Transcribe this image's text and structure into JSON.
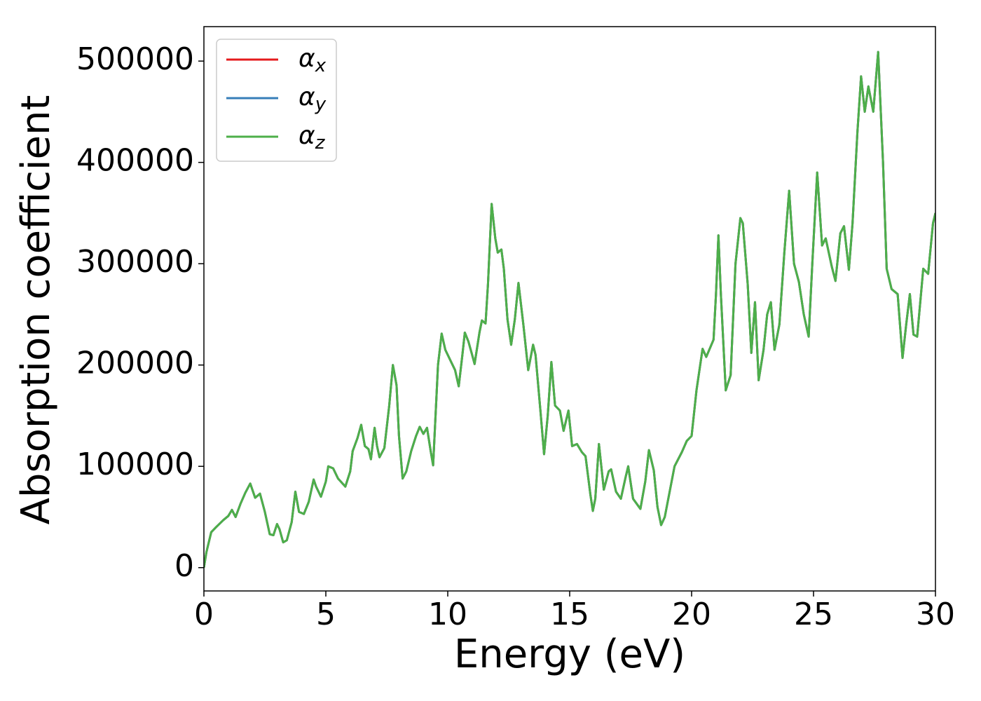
{
  "chart_data": {
    "type": "line",
    "xlabel": "Energy (eV)",
    "ylabel": "Absorption coefficient",
    "xlim": [
      0,
      30
    ],
    "xticks": [
      0,
      5,
      10,
      15,
      20,
      25,
      30
    ],
    "ylim": [
      -23000,
      534000
    ],
    "yticks": [
      0,
      100000,
      200000,
      300000,
      400000,
      500000
    ],
    "legend": "upper left",
    "grid": false,
    "x": [
      0,
      0.1,
      0.3,
      0.5,
      0.8,
      1.0,
      1.15,
      1.3,
      1.5,
      1.7,
      1.9,
      2.1,
      2.3,
      2.5,
      2.7,
      2.85,
      3.0,
      3.1,
      3.25,
      3.4,
      3.6,
      3.75,
      3.9,
      4.1,
      4.3,
      4.5,
      4.6,
      4.8,
      5.0,
      5.1,
      5.3,
      5.5,
      5.8,
      6.0,
      6.1,
      6.3,
      6.45,
      6.6,
      6.75,
      6.85,
      7.0,
      7.1,
      7.2,
      7.4,
      7.6,
      7.75,
      7.9,
      8.0,
      8.15,
      8.3,
      8.5,
      8.7,
      8.85,
      9.0,
      9.15,
      9.3,
      9.4,
      9.6,
      9.75,
      9.9,
      10.1,
      10.3,
      10.45,
      10.6,
      10.7,
      10.85,
      11.0,
      11.1,
      11.3,
      11.4,
      11.55,
      11.65,
      11.8,
      11.95,
      12.05,
      12.2,
      12.3,
      12.45,
      12.6,
      12.75,
      12.9,
      13.1,
      13.3,
      13.5,
      13.6,
      13.8,
      13.95,
      14.1,
      14.25,
      14.4,
      14.6,
      14.75,
      14.95,
      15.1,
      15.3,
      15.5,
      15.65,
      15.85,
      15.95,
      16.05,
      16.2,
      16.4,
      16.6,
      16.7,
      16.9,
      17.1,
      17.3,
      17.4,
      17.6,
      17.9,
      18.1,
      18.25,
      18.45,
      18.6,
      18.75,
      18.9,
      19.1,
      19.3,
      19.6,
      19.8,
      20.0,
      20.2,
      20.45,
      20.6,
      20.9,
      21.0,
      21.1,
      21.2,
      21.4,
      21.6,
      21.8,
      22.0,
      22.1,
      22.3,
      22.45,
      22.6,
      22.75,
      22.95,
      23.1,
      23.25,
      23.4,
      23.6,
      23.8,
      24.0,
      24.2,
      24.4,
      24.6,
      24.8,
      24.95,
      25.15,
      25.35,
      25.5,
      25.75,
      25.9,
      26.1,
      26.25,
      26.45,
      26.6,
      26.8,
      26.95,
      27.1,
      27.25,
      27.45,
      27.65,
      27.85,
      28.0,
      28.2,
      28.45,
      28.65,
      28.8,
      28.95,
      29.1,
      29.25,
      29.5,
      29.7,
      29.9,
      30.0
    ],
    "series": [
      {
        "name": "αx",
        "color": "#e41a1c",
        "values": [
          0,
          15000,
          35000,
          40000,
          47000,
          51000,
          57000,
          50000,
          63000,
          74000,
          83000,
          69000,
          73000,
          55000,
          33000,
          32000,
          43000,
          38000,
          25000,
          27000,
          45000,
          75000,
          55000,
          53000,
          65000,
          87000,
          80000,
          70000,
          85000,
          100000,
          98000,
          88000,
          80000,
          95000,
          115000,
          128000,
          141000,
          120000,
          117000,
          107000,
          138000,
          120000,
          109000,
          118000,
          160000,
          200000,
          180000,
          130000,
          88000,
          95000,
          115000,
          130000,
          139000,
          132000,
          138000,
          115000,
          101000,
          200000,
          231000,
          215000,
          205000,
          195000,
          179000,
          210000,
          232000,
          223000,
          210000,
          201000,
          232000,
          244000,
          241000,
          280000,
          359000,
          325000,
          311000,
          314000,
          295000,
          245000,
          220000,
          245000,
          281000,
          240000,
          195000,
          220000,
          210000,
          155000,
          112000,
          150000,
          203000,
          160000,
          155000,
          135000,
          155000,
          120000,
          122000,
          114000,
          110000,
          72000,
          56000,
          68000,
          122000,
          77000,
          95000,
          97000,
          75000,
          68000,
          90000,
          100000,
          68000,
          58000,
          85000,
          116000,
          96000,
          60000,
          42000,
          50000,
          75000,
          100000,
          114000,
          125000,
          130000,
          175000,
          216000,
          208000,
          225000,
          270000,
          328000,
          270000,
          175000,
          190000,
          300000,
          345000,
          340000,
          280000,
          212000,
          262000,
          185000,
          215000,
          250000,
          262000,
          215000,
          240000,
          310000,
          372000,
          300000,
          282000,
          250000,
          228000,
          300000,
          390000,
          318000,
          325000,
          297000,
          283000,
          330000,
          337000,
          294000,
          340000,
          430000,
          485000,
          450000,
          475000,
          450000,
          509000,
          400000,
          295000,
          275000,
          270000,
          207000,
          240000,
          270000,
          230000,
          228000,
          295000,
          290000,
          340000,
          350000
        ]
      },
      {
        "name": "αy",
        "color": "#377eb8",
        "values": [
          0,
          15000,
          35000,
          40000,
          47000,
          51000,
          57000,
          50000,
          63000,
          74000,
          83000,
          69000,
          73000,
          55000,
          33000,
          32000,
          43000,
          38000,
          25000,
          27000,
          45000,
          75000,
          55000,
          53000,
          65000,
          87000,
          80000,
          70000,
          85000,
          100000,
          98000,
          88000,
          80000,
          95000,
          115000,
          128000,
          141000,
          120000,
          117000,
          107000,
          138000,
          120000,
          109000,
          118000,
          160000,
          200000,
          180000,
          130000,
          88000,
          95000,
          115000,
          130000,
          139000,
          132000,
          138000,
          115000,
          101000,
          200000,
          231000,
          215000,
          205000,
          195000,
          179000,
          210000,
          232000,
          223000,
          210000,
          201000,
          232000,
          244000,
          241000,
          280000,
          359000,
          325000,
          311000,
          314000,
          295000,
          245000,
          220000,
          245000,
          281000,
          240000,
          195000,
          220000,
          210000,
          155000,
          112000,
          150000,
          203000,
          160000,
          155000,
          135000,
          155000,
          120000,
          122000,
          114000,
          110000,
          72000,
          56000,
          68000,
          122000,
          77000,
          95000,
          97000,
          75000,
          68000,
          90000,
          100000,
          68000,
          58000,
          85000,
          116000,
          96000,
          60000,
          42000,
          50000,
          75000,
          100000,
          114000,
          125000,
          130000,
          175000,
          216000,
          208000,
          225000,
          270000,
          328000,
          270000,
          175000,
          190000,
          300000,
          345000,
          340000,
          280000,
          212000,
          262000,
          185000,
          215000,
          250000,
          262000,
          215000,
          240000,
          310000,
          372000,
          300000,
          282000,
          250000,
          228000,
          300000,
          390000,
          318000,
          325000,
          297000,
          283000,
          330000,
          337000,
          294000,
          340000,
          430000,
          485000,
          450000,
          475000,
          450000,
          509000,
          400000,
          295000,
          275000,
          270000,
          207000,
          240000,
          270000,
          230000,
          228000,
          295000,
          290000,
          340000,
          350000
        ]
      },
      {
        "name": "αz",
        "color": "#4daf4a",
        "values": [
          0,
          15000,
          35000,
          40000,
          47000,
          51000,
          57000,
          50000,
          63000,
          74000,
          83000,
          69000,
          73000,
          55000,
          33000,
          32000,
          43000,
          38000,
          25000,
          27000,
          45000,
          75000,
          55000,
          53000,
          65000,
          87000,
          80000,
          70000,
          85000,
          100000,
          98000,
          88000,
          80000,
          95000,
          115000,
          128000,
          141000,
          120000,
          117000,
          107000,
          138000,
          120000,
          109000,
          118000,
          160000,
          200000,
          180000,
          130000,
          88000,
          95000,
          115000,
          130000,
          139000,
          132000,
          138000,
          115000,
          101000,
          200000,
          231000,
          215000,
          205000,
          195000,
          179000,
          210000,
          232000,
          223000,
          210000,
          201000,
          232000,
          244000,
          241000,
          280000,
          359000,
          325000,
          311000,
          314000,
          295000,
          245000,
          220000,
          245000,
          281000,
          240000,
          195000,
          220000,
          210000,
          155000,
          112000,
          150000,
          203000,
          160000,
          155000,
          135000,
          155000,
          120000,
          122000,
          114000,
          110000,
          72000,
          56000,
          68000,
          122000,
          77000,
          95000,
          97000,
          75000,
          68000,
          90000,
          100000,
          68000,
          58000,
          85000,
          116000,
          96000,
          60000,
          42000,
          50000,
          75000,
          100000,
          114000,
          125000,
          130000,
          175000,
          216000,
          208000,
          225000,
          270000,
          328000,
          270000,
          175000,
          190000,
          300000,
          345000,
          340000,
          280000,
          212000,
          262000,
          185000,
          215000,
          250000,
          262000,
          215000,
          240000,
          310000,
          372000,
          300000,
          282000,
          250000,
          228000,
          300000,
          390000,
          318000,
          325000,
          297000,
          283000,
          330000,
          337000,
          294000,
          340000,
          430000,
          485000,
          450000,
          475000,
          450000,
          509000,
          400000,
          295000,
          275000,
          270000,
          207000,
          240000,
          270000,
          230000,
          228000,
          295000,
          290000,
          340000,
          350000
        ]
      }
    ]
  }
}
